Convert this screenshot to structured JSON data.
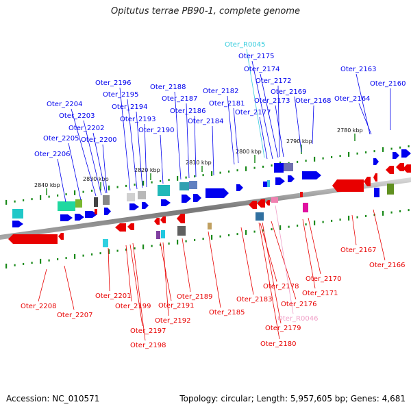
{
  "title": "Opitutus terrae PB90-1, complete genome",
  "footer": {
    "accession": "Accession: NC_010571",
    "topology": "Topology: circular; Length: 5,957,605 bp; Genes: 4,681"
  },
  "scale_ticks": [
    "2840 kbp",
    "2830 kbp",
    "2820 kbp",
    "2810 kbp",
    "2800 kbp",
    "2790 kbp",
    "2780 kbp"
  ],
  "genes_top": [
    "Oter_2206",
    "Oter_2205",
    "Oter_2204",
    "Oter_2203",
    "Oter_2202",
    "Oter_2200",
    "Oter_2196",
    "Oter_2195",
    "Oter_2194",
    "Oter_2193",
    "Oter_2190",
    "Oter_2188",
    "Oter_2187",
    "Oter_2186",
    "Oter_2184",
    "Oter_2182",
    "Oter_2181",
    "Oter_2177",
    "Oter_2175",
    "Oter_2174",
    "Oter_2173",
    "Oter_2172",
    "Oter_2169",
    "Oter_2168",
    "Oter_2164",
    "Oter_2163",
    "Oter_2160"
  ],
  "rna_top": "Oter_R0045",
  "genes_bottom": [
    "Oter_2208",
    "Oter_2207",
    "Oter_2201",
    "Oter_2199",
    "Oter_2197",
    "Oter_2198",
    "Oter_2191",
    "Oter_2192",
    "Oter_2189",
    "Oter_2185",
    "Oter_2183",
    "Oter_2178",
    "Oter_2179",
    "Oter_2180",
    "Oter_2176",
    "Oter_2171",
    "Oter_2170",
    "Oter_2167",
    "Oter_2166"
  ],
  "rna_bottom": "Oter_R0046",
  "colors": {
    "forward_gene": "#0000ee",
    "reverse_gene": "#e80000",
    "trna_label": "#33ccdd",
    "rrna_label": "#f0a0c8",
    "backbone": "#888888",
    "tick": "#1a8a1a"
  }
}
